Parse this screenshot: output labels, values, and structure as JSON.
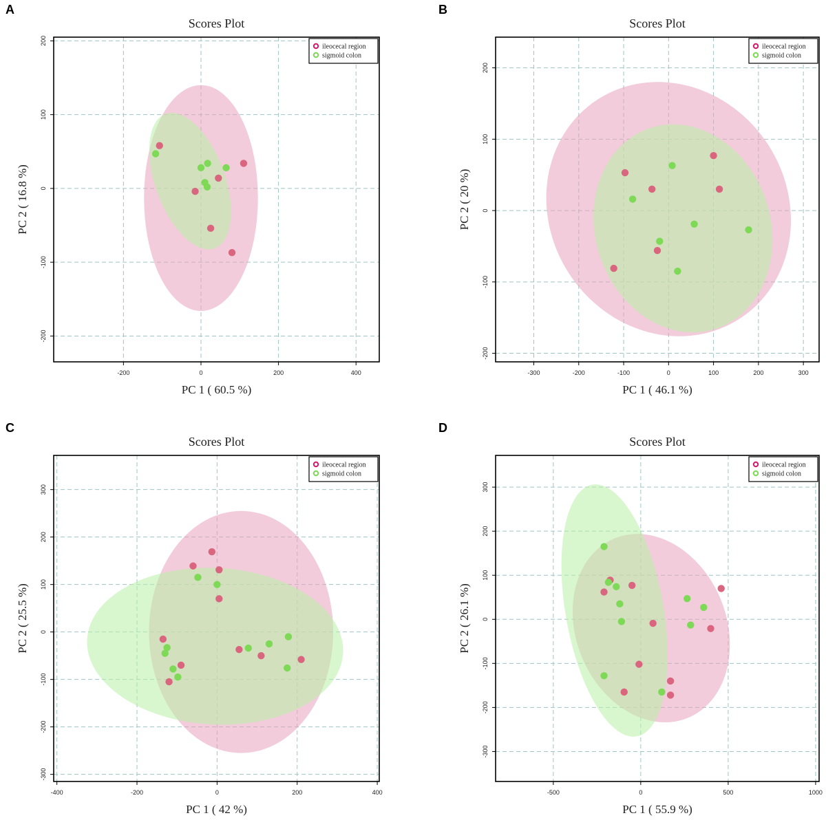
{
  "colors": {
    "ileocecal_point": "#d9667e",
    "ileocecal_ellipse": "#e8a3bc",
    "sigmoid_point": "#7ed957",
    "sigmoid_ellipse": "#b8f0a8",
    "grid": "#9fc4c4"
  },
  "chart_data": [
    {
      "panel": "A",
      "type": "scatter",
      "title": "Scores Plot",
      "xlabel": "PC 1 ( 60.5 %)",
      "ylabel": "PC 2 ( 16.8 %)",
      "xlim": [
        -380,
        460
      ],
      "ylim": [
        -235,
        205
      ],
      "xticks": [
        -200,
        0,
        200,
        400
      ],
      "yticks": [
        -200,
        -100,
        0,
        100,
        200
      ],
      "legend": {
        "position": "top-right",
        "entries": [
          "ileocecal region",
          "sigmoid colon"
        ]
      },
      "ellipses": [
        {
          "series": "ileocecal region",
          "cx": 0,
          "cy": -13,
          "rx": 147,
          "ry": 153,
          "angle": 0
        },
        {
          "series": "sigmoid colon",
          "cx": -28,
          "cy": 10,
          "rx": 90,
          "ry": 97,
          "angle": -20
        }
      ],
      "series": [
        {
          "name": "ileocecal region",
          "points": [
            [
              -107,
              58
            ],
            [
              110,
              34
            ],
            [
              45,
              14
            ],
            [
              -15,
              -4
            ],
            [
              25,
              -54
            ],
            [
              80,
              -87
            ]
          ]
        },
        {
          "name": "sigmoid colon",
          "points": [
            [
              -117,
              47
            ],
            [
              17,
              34
            ],
            [
              0,
              28
            ],
            [
              65,
              28
            ],
            [
              10,
              8
            ],
            [
              16,
              2
            ]
          ]
        }
      ]
    },
    {
      "panel": "B",
      "type": "scatter",
      "title": "Scores Plot",
      "xlabel": "PC 1 ( 46.1 %)",
      "ylabel": "PC 2 ( 20 %)",
      "xlim": [
        -385,
        335
      ],
      "ylim": [
        -212,
        243
      ],
      "xticks": [
        -300,
        -200,
        -100,
        0,
        100,
        200,
        300
      ],
      "yticks": [
        -200,
        -100,
        0,
        100,
        200
      ],
      "legend": {
        "position": "top-right",
        "entries": [
          "ileocecal region",
          "sigmoid colon"
        ]
      },
      "ellipses": [
        {
          "series": "ileocecal region",
          "cx": 0,
          "cy": 2,
          "rx": 264,
          "ry": 183,
          "angle": -33
        },
        {
          "series": "sigmoid colon",
          "cx": 32,
          "cy": -25,
          "rx": 195,
          "ry": 148,
          "angle": -18
        }
      ],
      "series": [
        {
          "name": "ileocecal region",
          "points": [
            [
              -97,
              53
            ],
            [
              -37,
              30
            ],
            [
              100,
              77
            ],
            [
              113,
              30
            ],
            [
              -25,
              -56
            ],
            [
              -122,
              -81
            ]
          ]
        },
        {
          "name": "sigmoid colon",
          "points": [
            [
              -80,
              16
            ],
            [
              8,
              63
            ],
            [
              57,
              -19
            ],
            [
              178,
              -27
            ],
            [
              -20,
              -43
            ],
            [
              20,
              -85
            ]
          ]
        }
      ]
    },
    {
      "panel": "C",
      "type": "scatter",
      "title": "Scores Plot",
      "xlabel": "PC 1 ( 42 %)",
      "ylabel": "PC 2 ( 25.5 %)",
      "xlim": [
        -408,
        405
      ],
      "ylim": [
        -315,
        372
      ],
      "xticks": [
        -400,
        -200,
        0,
        200,
        400
      ],
      "yticks": [
        -300,
        -200,
        -100,
        0,
        100,
        200,
        300
      ],
      "legend": {
        "position": "top-right",
        "entries": [
          "ileocecal region",
          "sigmoid colon"
        ]
      },
      "ellipses": [
        {
          "series": "ileocecal region",
          "cx": 60,
          "cy": 0,
          "rx": 230,
          "ry": 255,
          "angle": 0
        },
        {
          "series": "sigmoid colon",
          "cx": -5,
          "cy": -30,
          "rx": 320,
          "ry": 165,
          "angle": 3
        }
      ],
      "series": [
        {
          "name": "ileocecal region",
          "points": [
            [
              -13,
              169
            ],
            [
              -60,
              139
            ],
            [
              5,
              131
            ],
            [
              5,
              70
            ],
            [
              -135,
              -15
            ],
            [
              -90,
              -70
            ],
            [
              -120,
              -105
            ],
            [
              55,
              -37
            ],
            [
              110,
              -50
            ],
            [
              210,
              -58
            ]
          ]
        },
        {
          "name": "sigmoid colon",
          "points": [
            [
              -48,
              115
            ],
            [
              0,
              100
            ],
            [
              -125,
              -33
            ],
            [
              -130,
              -45
            ],
            [
              -110,
              -78
            ],
            [
              -98,
              -95
            ],
            [
              78,
              -34
            ],
            [
              130,
              -25
            ],
            [
              178,
              -10
            ],
            [
              175,
              -76
            ]
          ]
        }
      ]
    },
    {
      "panel": "D",
      "type": "scatter",
      "title": "Scores Plot",
      "xlabel": "PC 1 ( 55.9 %)",
      "ylabel": "PC 2 ( 26.1 %)",
      "xlim": [
        -830,
        1020
      ],
      "ylim": [
        -368,
        372
      ],
      "xticks": [
        -500,
        0,
        500,
        1000
      ],
      "yticks": [
        -300,
        -200,
        -100,
        0,
        100,
        200,
        300
      ],
      "legend": {
        "position": "top-right",
        "entries": [
          "ileocecal region",
          "sigmoid colon"
        ]
      },
      "ellipses": [
        {
          "series": "ileocecal region",
          "cx": 60,
          "cy": -20,
          "rx": 430,
          "ry": 220,
          "angle": -22
        },
        {
          "series": "sigmoid colon",
          "cx": -150,
          "cy": 20,
          "rx": 280,
          "ry": 290,
          "angle": -10
        }
      ],
      "series": [
        {
          "name": "ileocecal region",
          "points": [
            [
              -175,
              89
            ],
            [
              -50,
              77
            ],
            [
              -210,
              62
            ],
            [
              460,
              70
            ],
            [
              70,
              -9
            ],
            [
              400,
              -21
            ],
            [
              -10,
              -102
            ],
            [
              170,
              -140
            ],
            [
              170,
              -172
            ],
            [
              -95,
              -165
            ]
          ]
        },
        {
          "name": "sigmoid colon",
          "points": [
            [
              -210,
              165
            ],
            [
              -185,
              84
            ],
            [
              -140,
              74
            ],
            [
              -120,
              35
            ],
            [
              -110,
              -5
            ],
            [
              265,
              47
            ],
            [
              360,
              27
            ],
            [
              285,
              -13
            ],
            [
              -210,
              -128
            ],
            [
              120,
              -165
            ]
          ]
        }
      ]
    }
  ]
}
